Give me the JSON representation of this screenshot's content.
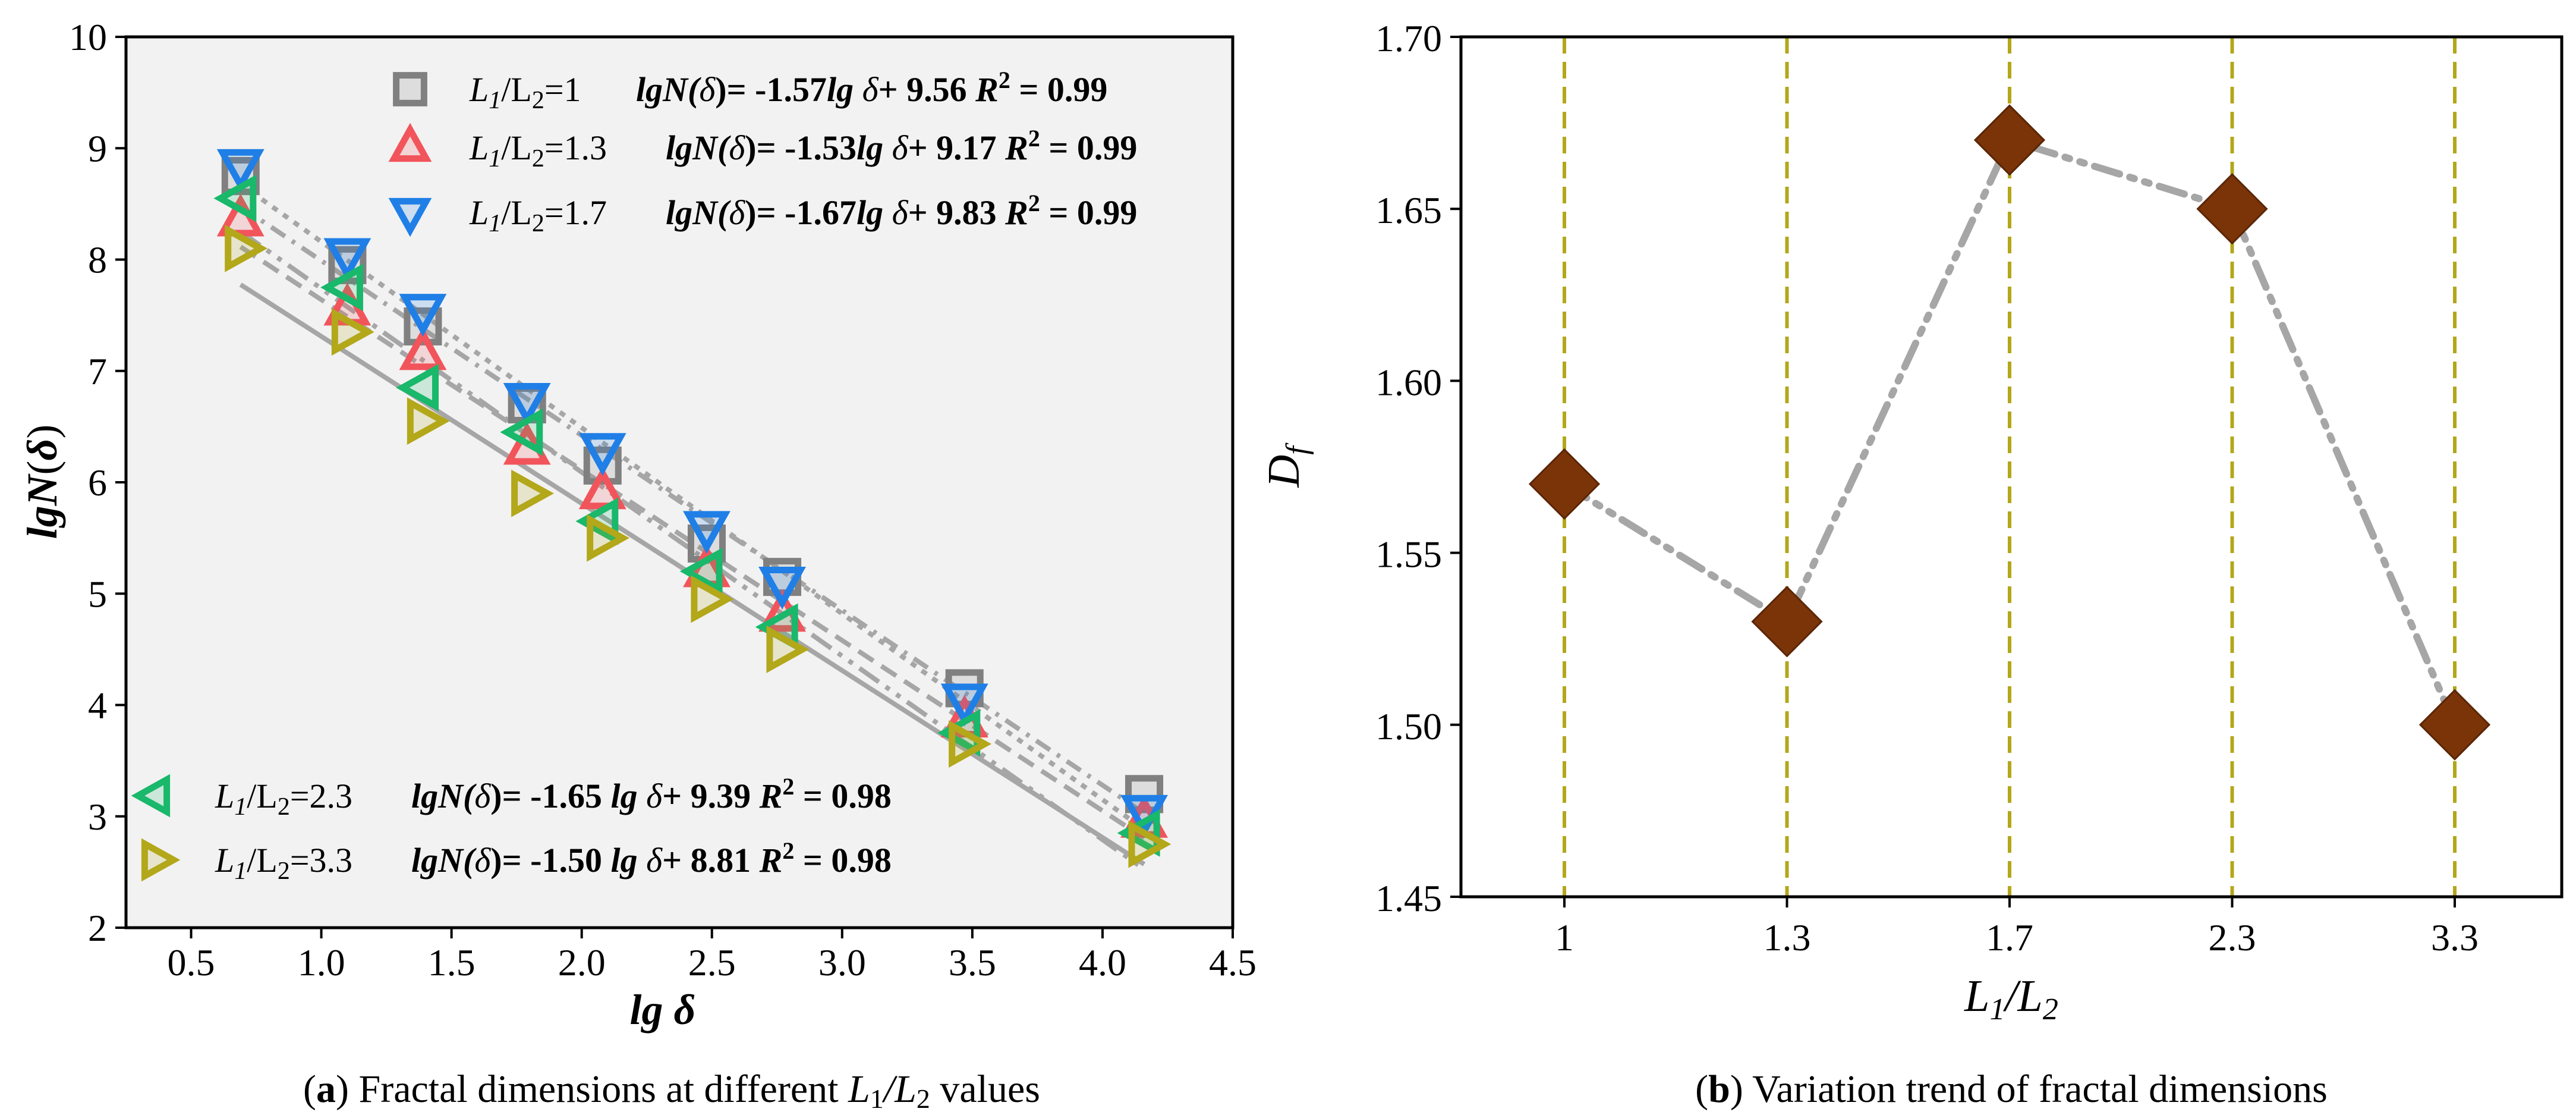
{
  "panel_a": {
    "caption_letter": "a",
    "caption_text": "Fractal dimensions at different",
    "caption_suffix": "values",
    "xlabel": "lg δ",
    "ylabel": "lgN(δ)",
    "ylabel_parts": {
      "pre": "lgN",
      "paren_open": "(",
      "delta": "δ",
      "paren_close": ")"
    },
    "xticks": [
      "0.5",
      "1.0",
      "1.5",
      "2.0",
      "2.5",
      "3.0",
      "3.5",
      "4.0",
      "4.5"
    ],
    "yticks": [
      "2",
      "3",
      "4",
      "5",
      "6",
      "7",
      "8",
      "9",
      "10"
    ],
    "legend_label_prefix": "L",
    "legend_sub1": "1",
    "legend_sub2": "2"
  },
  "panel_b": {
    "caption_letter": "b",
    "caption_text": "Variation trend of fractal dimensions",
    "xlabel_l1": "L",
    "xlabel_sub1": "1",
    "xlabel_slash": "/L",
    "xlabel_sub2": "2",
    "ylabel_d": "D",
    "ylabel_sub": "f",
    "xticks": [
      "1",
      "1.3",
      "1.7",
      "2.3",
      "3.3"
    ],
    "yticks": [
      "1.45",
      "1.50",
      "1.55",
      "1.60",
      "1.65",
      "1.70"
    ]
  },
  "colors": {
    "gray_square": "#808080",
    "red_triangle": "#f2545b",
    "blue_triangle": "#1f7fe6",
    "green_left": "#19b86b",
    "olive_right": "#b3a71a",
    "fit_line": "#a6a6a6",
    "diamond": "#7b3408",
    "vline": "#b3a71a",
    "panel_a_bg": "#f2f2f2"
  },
  "chart_data": [
    {
      "type": "scatter",
      "title": "",
      "xlabel": "lg δ",
      "ylabel": "lgN(δ)",
      "xlim": [
        0.25,
        4.5
      ],
      "ylim": [
        2,
        10
      ],
      "grid": false,
      "legend_position": "top-right and bottom-left",
      "series": [
        {
          "name": "L1/L2=1",
          "label": "/L₂=1",
          "ratio": "1",
          "marker": "square",
          "equation": "lgN(δ)= -1.57lg δ+ 9.56 R² = 0.99",
          "eq_parts": [
            "lgN(",
            "δ",
            ")= -1.57",
            "lg",
            " δ",
            "+ 9.56 ",
            "R",
            "2",
            " = 0.99"
          ],
          "x": [
            0.69,
            1.1,
            1.39,
            1.79,
            2.08,
            2.48,
            2.77,
            3.47,
            4.16
          ],
          "y": [
            8.75,
            7.95,
            7.4,
            6.7,
            6.15,
            5.45,
            5.15,
            4.15,
            3.2
          ],
          "fit": {
            "slope": -1.57,
            "intercept": 9.56
          }
        },
        {
          "name": "L1/L2=1.3",
          "label": "/L₂=1.3",
          "ratio": "1.3",
          "marker": "triangle-up",
          "equation": "lgN(δ)= -1.53lg δ+ 9.17 R² = 0.99",
          "eq_parts": [
            "lgN(",
            "δ",
            ")= -1.53",
            "lg",
            " δ",
            "+ 9.17 ",
            "R",
            "2",
            " = 0.99"
          ],
          "x": [
            0.69,
            1.1,
            1.39,
            1.79,
            2.08,
            2.48,
            2.77,
            3.47,
            4.16
          ],
          "y": [
            8.35,
            7.55,
            7.15,
            6.3,
            5.9,
            5.2,
            4.8,
            3.85,
            2.95
          ],
          "fit": {
            "slope": -1.53,
            "intercept": 9.17
          }
        },
        {
          "name": "L1/L2=1.7",
          "label": "/L₂=1.7",
          "ratio": "1.7",
          "marker": "triangle-down",
          "equation": "lgN(δ)= -1.67lg δ+ 9.83 R² = 0.99",
          "eq_parts": [
            "lgN(",
            "δ",
            ")= -1.67",
            "lg",
            " δ",
            "+ 9.83 ",
            "R",
            "2",
            " = 0.99"
          ],
          "x": [
            0.69,
            1.1,
            1.39,
            1.79,
            2.08,
            2.48,
            2.77,
            3.47,
            4.16
          ],
          "y": [
            8.85,
            8.05,
            7.55,
            6.75,
            6.3,
            5.6,
            5.1,
            4.05,
            3.05
          ],
          "fit": {
            "slope": -1.67,
            "intercept": 9.83
          }
        },
        {
          "name": "L1/L2=2.3",
          "label": "/L₂=2.3",
          "ratio": "2.3",
          "marker": "triangle-left",
          "equation": "lgN(δ)= -1.65 lg δ+ 9.39 R² = 0.98",
          "eq_parts": [
            "lgN(",
            "δ",
            ")= -1.65 ",
            "lg",
            " δ",
            "+ 9.39 ",
            "R",
            "2",
            " = 0.98"
          ],
          "x": [
            0.69,
            1.1,
            1.39,
            1.79,
            2.08,
            2.48,
            2.77,
            3.47,
            4.16
          ],
          "y": [
            8.55,
            7.75,
            6.85,
            6.45,
            5.65,
            5.2,
            4.7,
            3.75,
            2.85
          ],
          "fit": {
            "slope": -1.65,
            "intercept": 9.39
          }
        },
        {
          "name": "L1/L2=3.3",
          "label": "/L₂=3.3",
          "ratio": "3.3",
          "marker": "triangle-right",
          "equation": "lgN(δ)= -1.50 lg δ+ 8.81 R² = 0.98",
          "eq_parts": [
            "lgN(",
            "δ",
            ")= -1.50 ",
            "lg",
            " δ",
            "+ 8.81 ",
            "R",
            "2",
            " = 0.98"
          ],
          "x": [
            0.69,
            1.1,
            1.39,
            1.79,
            2.08,
            2.48,
            2.77,
            3.47,
            4.16
          ],
          "y": [
            8.1,
            7.35,
            6.55,
            5.9,
            5.5,
            4.95,
            4.5,
            3.65,
            2.75
          ],
          "fit": {
            "slope": -1.5,
            "intercept": 8.81
          }
        }
      ]
    },
    {
      "type": "line",
      "title": "",
      "xlabel": "L1/L2",
      "ylabel": "Df",
      "categories": [
        "1",
        "1.3",
        "1.7",
        "2.3",
        "3.3"
      ],
      "values": [
        1.57,
        1.53,
        1.67,
        1.65,
        1.5
      ],
      "ylim": [
        1.45,
        1.7
      ],
      "grid": false,
      "marker": "diamond",
      "line_style": "dash-dot",
      "vertical_dashed_lines_at_categories": true
    }
  ]
}
